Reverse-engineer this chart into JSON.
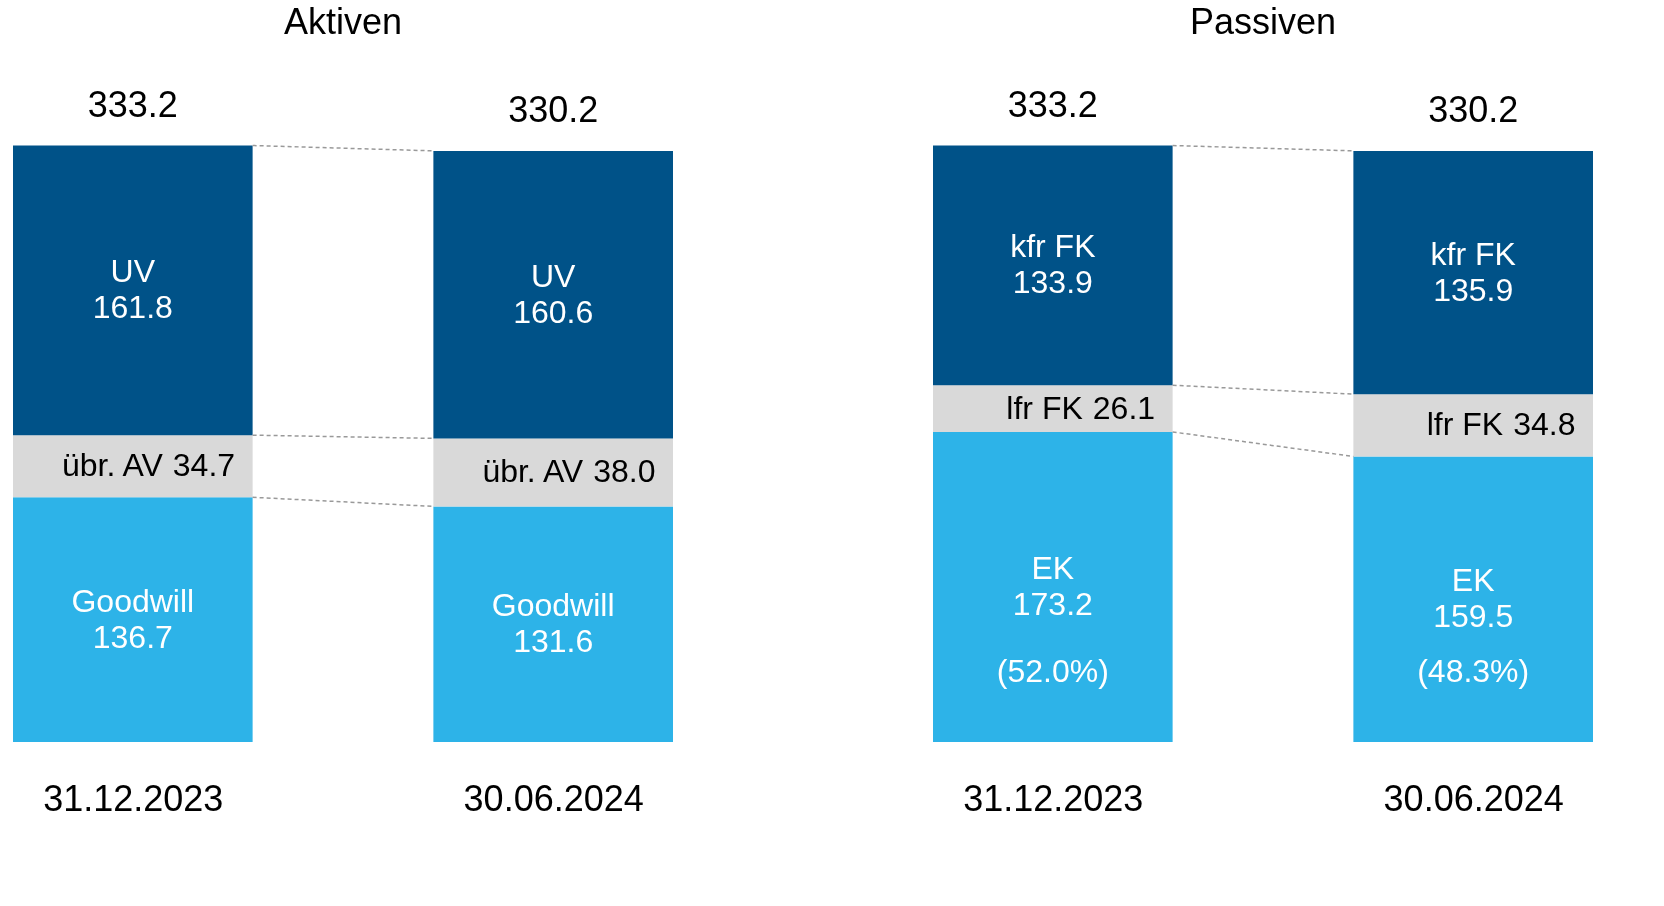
{
  "chart_data": [
    {
      "type": "bar",
      "stacked": true,
      "title": "Aktiven",
      "categories": [
        "31.12.2023",
        "30.06.2024"
      ],
      "series": [
        {
          "name": "Goodwill",
          "color": "#2db3e8",
          "values": [
            136.7,
            131.6
          ]
        },
        {
          "name": "übr. AV",
          "color": "#d9d9d9",
          "values": [
            34.7,
            38.0
          ],
          "value_labels": [
            "34.7",
            "38.0"
          ]
        },
        {
          "name": "UV",
          "color": "#005288",
          "values": [
            161.8,
            160.6
          ]
        }
      ],
      "data_labels": true,
      "totals": [
        "333.2",
        "330.2"
      ],
      "tick_labels": "x",
      "legend": false,
      "grid": false
    },
    {
      "type": "bar",
      "stacked": true,
      "title": "Passiven",
      "categories": [
        "31.12.2023",
        "30.06.2024"
      ],
      "series": [
        {
          "name": "EK",
          "color": "#2db3e8",
          "values": [
            173.2,
            159.5
          ]
        },
        {
          "name": "lfr FK",
          "color": "#d9d9d9",
          "values": [
            26.1,
            34.8
          ]
        },
        {
          "name": "kfr FK",
          "color": "#005288",
          "values": [
            133.9,
            135.9
          ]
        }
      ],
      "data_labels": true,
      "totals": [
        "333.2",
        "330.2"
      ],
      "tick_labels": "x",
      "legend": false,
      "grid": false,
      "annotations": [
        "(52.0%)",
        "(48.3%)"
      ]
    }
  ]
}
